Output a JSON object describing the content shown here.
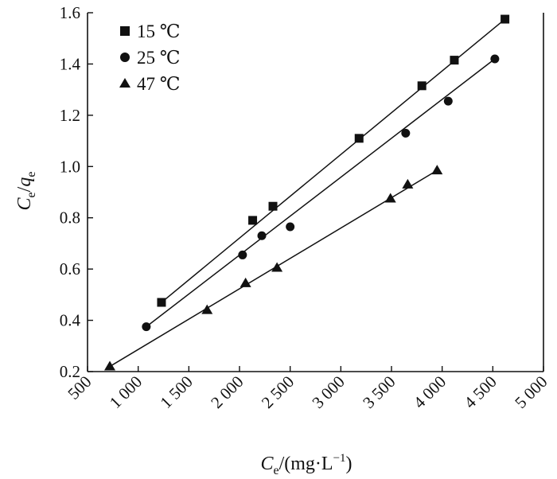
{
  "colors": {
    "ink": "#111111",
    "background": "#ffffff"
  },
  "chart_data": {
    "type": "scatter",
    "xlabel": {
      "main": "C",
      "sub": "e",
      "rest": "/(mg·L",
      "sup": "−1",
      "close": ")"
    },
    "ylabel": {
      "a": "C",
      "a_sub": "e",
      "slash": "/",
      "b": "q",
      "b_sub": "e"
    },
    "xlim": [
      500,
      5000
    ],
    "ylim": [
      0.2,
      1.6
    ],
    "x_ticks": [
      500,
      1000,
      1500,
      2000,
      2500,
      3000,
      3500,
      4000,
      4500,
      5000
    ],
    "x_tick_labels": [
      "500",
      "1 000",
      "1 500",
      "2 000",
      "2 500",
      "3 000",
      "3 500",
      "4 000",
      "4 500",
      "5 000"
    ],
    "y_ticks": [
      0.2,
      0.4,
      0.6,
      0.8,
      1.0,
      1.2,
      1.4,
      1.6
    ],
    "y_tick_labels": [
      "0.2",
      "0.4",
      "0.6",
      "0.8",
      "1.0",
      "1.2",
      "1.4",
      "1.6"
    ],
    "legend_position": "top-left",
    "series": [
      {
        "name": "15 ℃",
        "marker": "square",
        "x": [
          1230,
          2130,
          2330,
          3180,
          3800,
          4120,
          4620
        ],
        "y": [
          0.47,
          0.79,
          0.845,
          1.11,
          1.315,
          1.415,
          1.575
        ],
        "fit": [
          [
            1230,
            0.47
          ],
          [
            4620,
            1.575
          ]
        ]
      },
      {
        "name": "25 ℃",
        "marker": "circle",
        "x": [
          1080,
          2030,
          2220,
          2500,
          3640,
          4060,
          4520
        ],
        "y": [
          0.375,
          0.655,
          0.73,
          0.765,
          1.13,
          1.255,
          1.42
        ],
        "fit": [
          [
            1080,
            0.375
          ],
          [
            4520,
            1.42
          ]
        ]
      },
      {
        "name": "47 ℃",
        "marker": "triangle",
        "x": [
          720,
          1680,
          2060,
          2370,
          3490,
          3660,
          3950
        ],
        "y": [
          0.22,
          0.44,
          0.545,
          0.605,
          0.875,
          0.93,
          0.985
        ],
        "fit": [
          [
            720,
            0.22
          ],
          [
            3950,
            0.985
          ]
        ]
      }
    ]
  }
}
